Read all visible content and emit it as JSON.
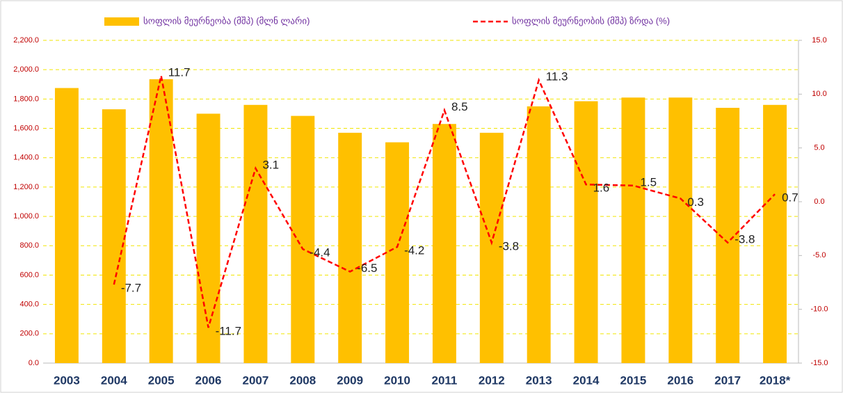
{
  "chart_data": {
    "type": "bar_line",
    "categories": [
      "2003",
      "2004",
      "2005",
      "2006",
      "2007",
      "2008",
      "2009",
      "2010",
      "2011",
      "2012",
      "2013",
      "2014",
      "2015",
      "2016",
      "2017",
      "2018*"
    ],
    "series": [
      {
        "name": "სოფლის მეურნეობა (მშპ) (მლნ ლარი)",
        "color": "#ffc000",
        "type": "bar",
        "values": [
          1875,
          1730,
          1935,
          1700,
          1760,
          1685,
          1570,
          1505,
          1630,
          1570,
          1750,
          1785,
          1810,
          1810,
          1740,
          1760
        ]
      },
      {
        "name": "სოფლის მეურნეობის (მშპ) ზრდა (%)",
        "color": "#ff0000",
        "type": "line",
        "axis": "y2",
        "values": [
          null,
          -7.7,
          11.7,
          -11.7,
          3.1,
          -4.4,
          -6.5,
          -4.2,
          8.5,
          -3.8,
          11.3,
          1.6,
          1.5,
          0.3,
          -3.8,
          0.7
        ]
      }
    ],
    "ylim": [
      0,
      2200
    ],
    "yticks": [
      {
        "value": 0,
        "label": "0.0"
      },
      {
        "value": 200,
        "label": "200.0"
      },
      {
        "value": 400,
        "label": "400.0"
      },
      {
        "value": 600,
        "label": "600.0"
      },
      {
        "value": 800,
        "label": "800.0"
      },
      {
        "value": 1000,
        "label": "1,000.0"
      },
      {
        "value": 1200,
        "label": "1,200.0"
      },
      {
        "value": 1400,
        "label": "1,400.0"
      },
      {
        "value": 1600,
        "label": "1,600.0"
      },
      {
        "value": 1800,
        "label": "1,800.0"
      },
      {
        "value": 2000,
        "label": "2,000.0"
      },
      {
        "value": 2200,
        "label": "2,200.0"
      }
    ],
    "y2lim": [
      -15,
      15
    ],
    "y2ticks": [
      {
        "value": -15,
        "label": "-15.0"
      },
      {
        "value": -10,
        "label": "-10.0"
      },
      {
        "value": -5,
        "label": "-5.0"
      },
      {
        "value": 0,
        "label": "0.0"
      },
      {
        "value": 5,
        "label": "5.0"
      },
      {
        "value": 10,
        "label": "10.0"
      },
      {
        "value": 15,
        "label": "15.0"
      }
    ],
    "grid": true,
    "legend": "top"
  }
}
